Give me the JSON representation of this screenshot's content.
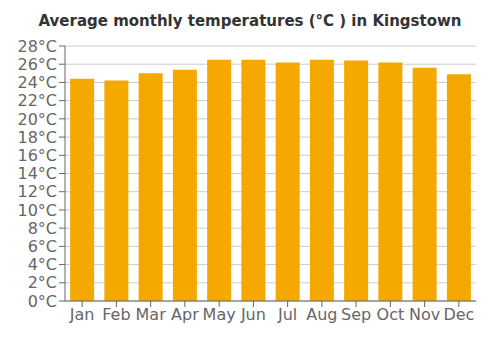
{
  "chart_data": {
    "type": "bar",
    "title": "Average monthly temperatures (°C ) in Kingstown",
    "categories": [
      "Jan",
      "Feb",
      "Mar",
      "Apr",
      "May",
      "Jun",
      "Jul",
      "Aug",
      "Sep",
      "Oct",
      "Nov",
      "Dec"
    ],
    "values": [
      24.4,
      24.2,
      25.0,
      25.4,
      26.5,
      26.5,
      26.2,
      26.5,
      26.4,
      26.2,
      25.6,
      24.9
    ],
    "color": "#F5A800",
    "ylim": [
      0,
      28
    ],
    "yticks": [
      {
        "value": 0,
        "label": "0°C"
      },
      {
        "value": 2,
        "label": "2°C"
      },
      {
        "value": 4,
        "label": "4°C"
      },
      {
        "value": 6,
        "label": "6°C"
      },
      {
        "value": 8,
        "label": "8°C"
      },
      {
        "value": 10,
        "label": "10°C"
      },
      {
        "value": 12,
        "label": "12°C"
      },
      {
        "value": 14,
        "label": "14°C"
      },
      {
        "value": 16,
        "label": "16°C"
      },
      {
        "value": 18,
        "label": "18°C"
      },
      {
        "value": 20,
        "label": "20°C"
      },
      {
        "value": 22,
        "label": "22°C"
      },
      {
        "value": 24,
        "label": "24°C"
      },
      {
        "value": 26,
        "label": "26°C"
      },
      {
        "value": 28,
        "label": "28°C"
      }
    ],
    "grid": true
  }
}
